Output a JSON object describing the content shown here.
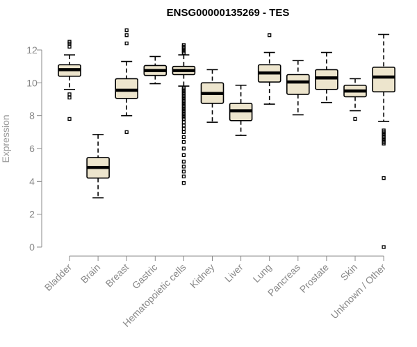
{
  "chart_data": {
    "type": "boxplot",
    "title": "ENSG00000135269 - TES",
    "ylabel": "Expression",
    "xlabel": "",
    "ylim": [
      0,
      13
    ],
    "yticks": [
      "0",
      "2",
      "4",
      "6",
      "8",
      "10",
      "12"
    ],
    "grid": false,
    "categories": [
      "Bladder",
      "Brain",
      "Breast",
      "Gastric",
      "Hematopoietic cells",
      "Kidney",
      "Liver",
      "Lung",
      "Pancreas",
      "Prostate",
      "Skin",
      "Unknown / Other"
    ],
    "boxes": [
      {
        "category": "Bladder",
        "whisker_low": 9.6,
        "q1": 10.4,
        "median": 10.8,
        "q3": 11.1,
        "whisker_high": 11.7,
        "outliers": [
          7.8,
          9.1,
          9.3,
          12.2,
          12.4,
          12.5
        ]
      },
      {
        "category": "Brain",
        "whisker_low": 3.0,
        "q1": 4.2,
        "median": 4.85,
        "q3": 5.45,
        "whisker_high": 6.85,
        "outliers": []
      },
      {
        "category": "Breast",
        "whisker_low": 8.0,
        "q1": 9.05,
        "median": 9.55,
        "q3": 10.25,
        "whisker_high": 11.3,
        "outliers": [
          7.0,
          12.4,
          12.9,
          13.2
        ]
      },
      {
        "category": "Gastric",
        "whisker_low": 9.95,
        "q1": 10.45,
        "median": 10.75,
        "q3": 11.05,
        "whisker_high": 11.6,
        "outliers": []
      },
      {
        "category": "Hematopoietic cells",
        "whisker_low": 9.8,
        "q1": 10.5,
        "median": 10.75,
        "q3": 11.0,
        "whisker_high": 11.7,
        "outliers": [
          3.9,
          4.3,
          4.6,
          4.9,
          5.2,
          5.6,
          6.0,
          6.4,
          6.7,
          7.0,
          7.2,
          7.4,
          7.6,
          7.8,
          7.9,
          8.0,
          8.1,
          8.2,
          8.3,
          8.4,
          8.5,
          8.6,
          8.7,
          8.8,
          8.9,
          9.0,
          9.1,
          9.2,
          9.3,
          9.4,
          9.5,
          9.6,
          9.7,
          11.8,
          11.9,
          12.0,
          12.1,
          12.2,
          12.3
        ]
      },
      {
        "category": "Kidney",
        "whisker_low": 7.6,
        "q1": 8.75,
        "median": 9.35,
        "q3": 10.0,
        "whisker_high": 10.8,
        "outliers": []
      },
      {
        "category": "Liver",
        "whisker_low": 6.8,
        "q1": 7.7,
        "median": 8.3,
        "q3": 8.75,
        "whisker_high": 9.85,
        "outliers": []
      },
      {
        "category": "Lung",
        "whisker_low": 8.7,
        "q1": 10.05,
        "median": 10.6,
        "q3": 11.1,
        "whisker_high": 11.85,
        "outliers": [
          12.9
        ]
      },
      {
        "category": "Pancreas",
        "whisker_low": 8.05,
        "q1": 9.3,
        "median": 10.05,
        "q3": 10.5,
        "whisker_high": 11.35,
        "outliers": []
      },
      {
        "category": "Prostate",
        "whisker_low": 8.8,
        "q1": 9.6,
        "median": 10.3,
        "q3": 10.8,
        "whisker_high": 11.85,
        "outliers": []
      },
      {
        "category": "Skin",
        "whisker_low": 8.3,
        "q1": 9.15,
        "median": 9.5,
        "q3": 9.85,
        "whisker_high": 10.25,
        "outliers": [
          7.8
        ]
      },
      {
        "category": "Unknown / Other",
        "whisker_low": 7.65,
        "q1": 9.45,
        "median": 10.35,
        "q3": 10.95,
        "whisker_high": 12.95,
        "outliers": [
          0.0,
          4.2,
          6.3,
          6.4,
          6.5,
          6.6,
          6.7,
          6.8,
          6.9,
          7.0,
          7.1
        ]
      }
    ],
    "colors": {
      "box_fill": "#ede5cd",
      "box_stroke": "#000000",
      "axis": "#888888",
      "tick_text": "#888888"
    }
  }
}
